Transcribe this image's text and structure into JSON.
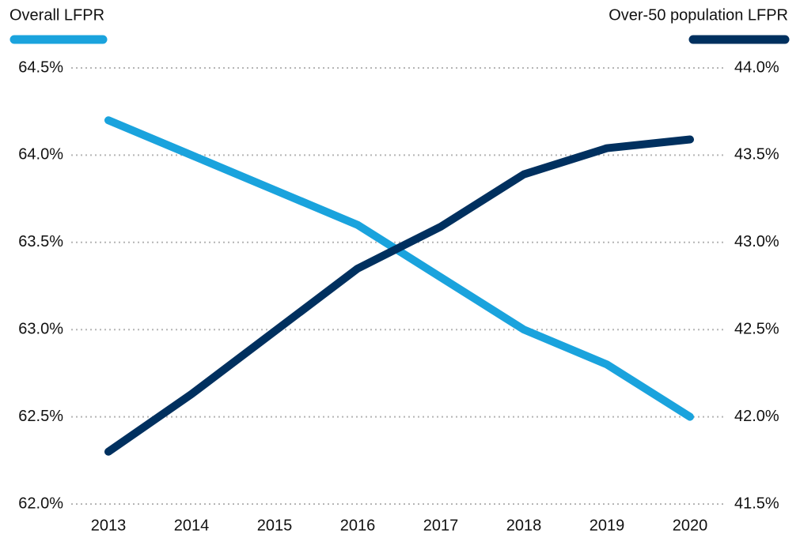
{
  "chart_data": {
    "type": "line",
    "categories": [
      "2013",
      "2014",
      "2015",
      "2016",
      "2017",
      "2018",
      "2019",
      "2020"
    ],
    "series": [
      {
        "name": "Overall LFPR",
        "color": "#1aa3dd",
        "axis": "y",
        "values": [
          64.2,
          64.0,
          63.8,
          63.6,
          63.3,
          63.0,
          62.8,
          62.5
        ]
      },
      {
        "name": "Over-50 population LFPR",
        "color": "#00305f",
        "axis": "y2",
        "values": [
          41.8,
          42.13,
          42.49,
          42.85,
          43.09,
          43.39,
          43.54,
          43.59
        ]
      }
    ],
    "ylim": [
      62.0,
      64.5
    ],
    "yticks": [
      {
        "value": 62.0,
        "label": "62.0%"
      },
      {
        "value": 62.5,
        "label": "62.5%"
      },
      {
        "value": 63.0,
        "label": "63.0%"
      },
      {
        "value": 63.5,
        "label": "63.5%"
      },
      {
        "value": 64.0,
        "label": "64.0%"
      },
      {
        "value": 64.5,
        "label": "64.5%"
      }
    ],
    "y2lim": [
      41.5,
      44.0
    ],
    "y2ticks": [
      {
        "value": 41.5,
        "label": "41.5%"
      },
      {
        "value": 42.0,
        "label": "42.0%"
      },
      {
        "value": 42.5,
        "label": "42.5%"
      },
      {
        "value": 43.0,
        "label": "43.0%"
      },
      {
        "value": 43.5,
        "label": "43.5%"
      },
      {
        "value": 44.0,
        "label": "44.0%"
      }
    ],
    "grid": true
  }
}
